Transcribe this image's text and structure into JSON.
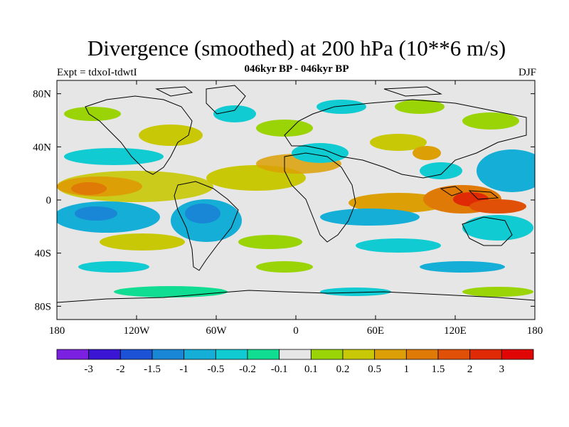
{
  "header": {
    "title": "Divergence (smoothed) at 200 hPa (10**6 m/s)",
    "subtitle": "046kyr BP - 046kyr BP",
    "experiment": "Expt = tdxoI-tdwtI",
    "season": "DJF"
  },
  "map": {
    "lat_range": [
      -90,
      90
    ],
    "lon_range": [
      -180,
      180
    ],
    "lat_ticks": [
      "80N",
      "40N",
      "0",
      "40S",
      "80S"
    ],
    "lat_tick_values": [
      80,
      40,
      0,
      -40,
      -80
    ],
    "lon_ticks": [
      "180",
      "120W",
      "60W",
      "0",
      "60E",
      "120E",
      "180"
    ],
    "lon_tick_values": [
      -180,
      -120,
      -60,
      0,
      60,
      120,
      180
    ],
    "background_color": "#e6e6e6",
    "field": "divergence difference",
    "notable_features": [
      {
        "value_class": "2 to 3",
        "lon": 135,
        "lat": 2
      },
      {
        "value_class": "-1.5 to -1",
        "lon": -140,
        "lat": -10
      },
      {
        "value_class": "-1.5 to -1",
        "lon": -70,
        "lat": -10
      },
      {
        "value_class": "0.5 to 1.5",
        "lon": -165,
        "lat": 10
      }
    ]
  },
  "colorbar": {
    "labels": [
      "-3",
      "-2",
      "-1.5",
      "-1",
      "-0.5",
      "-0.2",
      "-0.1",
      "0.1",
      "0.2",
      "0.5",
      "1",
      "1.5",
      "2",
      "3"
    ],
    "colors": [
      "#7b1fe0",
      "#3a16d4",
      "#1b52d6",
      "#1a86d6",
      "#14aed6",
      "#10ccd2",
      "#10dc92",
      "#e6e6e6",
      "#9ad406",
      "#c8c806",
      "#dca006",
      "#e07a06",
      "#e05006",
      "#e02a06",
      "#e00606"
    ]
  }
}
